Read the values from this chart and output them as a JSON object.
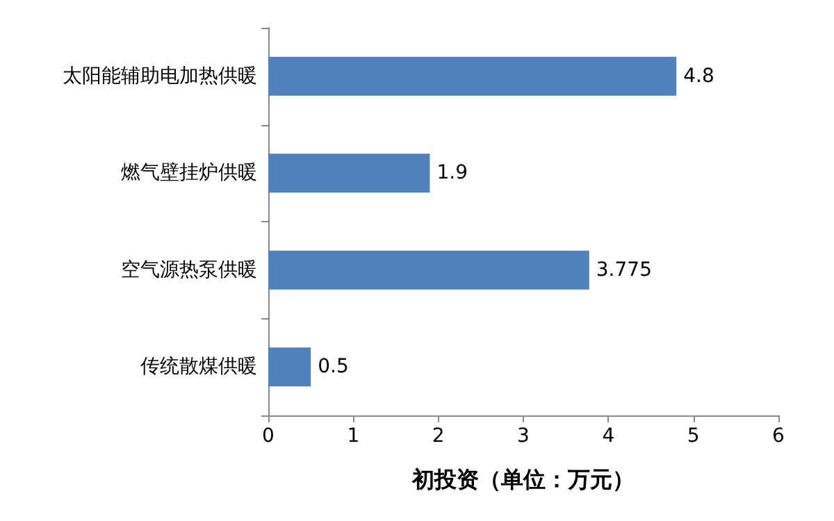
{
  "chart_data": {
    "type": "bar",
    "orientation": "horizontal",
    "xlabel": "初投资（单位：万元）",
    "categories": [
      "太阳能辅助电加热供暖",
      "燃气壁挂炉供暖",
      "空气源热泵供暖",
      "传统散煤供暖"
    ],
    "values": [
      4.8,
      1.9,
      3.775,
      0.5
    ],
    "color": "#4f81bd",
    "xlim": [
      0,
      6
    ],
    "xticks": [
      0,
      1,
      2,
      3,
      4,
      5,
      6
    ],
    "grid": false,
    "data_labels": true
  }
}
